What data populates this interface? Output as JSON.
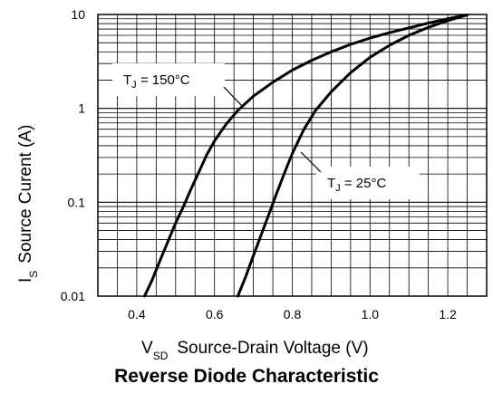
{
  "chart_data": {
    "type": "line",
    "title": "Reverse Diode Characteristic",
    "xlabel": {
      "main": "V",
      "sub": "SD",
      "text": "Source-Drain Voltage (V)"
    },
    "ylabel": {
      "main": "I",
      "sub": "S",
      "text": "Source Curent (A)"
    },
    "xlim": [
      0.3,
      1.3
    ],
    "ylim": [
      0.01,
      10
    ],
    "yscale": "log",
    "xticks": [
      "0.4",
      "0.6",
      "0.8",
      "1.0",
      "1.2"
    ],
    "yticks": [
      "0.01",
      "0.1",
      "1",
      "10"
    ],
    "grid": true,
    "series": [
      {
        "name": "TJ = 150°C",
        "label": {
          "main": "T",
          "sub": "J",
          "text": " = 150°C"
        },
        "x": [
          0.42,
          0.44,
          0.46,
          0.48,
          0.5,
          0.52,
          0.54,
          0.56,
          0.58,
          0.6,
          0.63,
          0.66,
          0.7,
          0.75,
          0.8,
          0.85,
          0.9,
          0.95,
          1.0,
          1.05,
          1.1,
          1.15,
          1.2,
          1.25
        ],
        "y": [
          0.01,
          0.015,
          0.024,
          0.038,
          0.06,
          0.09,
          0.14,
          0.21,
          0.32,
          0.45,
          0.68,
          0.95,
          1.35,
          1.9,
          2.55,
          3.25,
          4.0,
          4.8,
          5.6,
          6.4,
          7.2,
          8.1,
          9.0,
          9.9
        ]
      },
      {
        "name": "TJ = 25°C",
        "label": {
          "main": "T",
          "sub": "J",
          "text": " = 25°C"
        },
        "x": [
          0.66,
          0.68,
          0.7,
          0.72,
          0.74,
          0.76,
          0.78,
          0.8,
          0.83,
          0.86,
          0.9,
          0.95,
          1.0,
          1.05,
          1.1,
          1.15,
          1.2,
          1.25
        ],
        "y": [
          0.01,
          0.016,
          0.027,
          0.045,
          0.075,
          0.125,
          0.205,
          0.33,
          0.6,
          0.95,
          1.5,
          2.4,
          3.5,
          4.7,
          6.0,
          7.3,
          8.6,
          9.9
        ]
      }
    ]
  }
}
